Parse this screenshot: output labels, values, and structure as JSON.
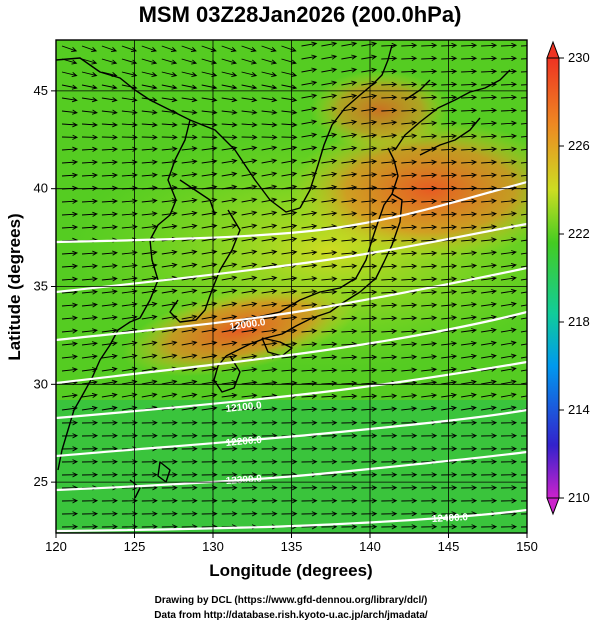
{
  "title": "MSM 03Z28Jan2026 (200.0hPa)",
  "xlabel": "Longitude (degrees)",
  "ylabel": "Latitude  (degrees)",
  "credits": [
    "Drawing by DCL (https://www.gfd-dennou.org/library/dcl/)",
    "Data from http://database.rish.kyoto-u.ac.jp/arch/jmadata/"
  ],
  "map": {
    "lon_range": [
      120,
      150
    ],
    "lat_range": [
      22.4,
      47.6
    ],
    "lon_ticks": [
      120,
      125,
      130,
      135,
      140,
      145,
      150
    ],
    "lat_ticks": [
      25,
      30,
      35,
      40,
      45
    ],
    "lon_tick_labels": [
      "120",
      "125",
      "130",
      "135",
      "140",
      "145",
      "150"
    ],
    "lat_tick_labels": [
      "25",
      "30",
      "35",
      "40",
      "45"
    ]
  },
  "colorbar": {
    "min": 210,
    "max": 230,
    "tick_labels": [
      "230",
      "226",
      "222",
      "218",
      "214",
      "210"
    ],
    "tick_values": [
      230,
      226,
      222,
      218,
      214,
      210
    ],
    "colors": [
      "#cc22cc",
      "#2222cc",
      "#00aaee",
      "#22cc66",
      "#77dd22",
      "#dddd22",
      "#ee9922",
      "#ee4422"
    ]
  },
  "contour_labels": [
    "12000.0",
    "12100.0",
    "12200.0",
    "12300.0",
    "12400.0"
  ],
  "colors": {
    "contour": "#ffffff",
    "arrows": "#000000",
    "coastline": "#000000",
    "background": "#ffffff"
  }
}
